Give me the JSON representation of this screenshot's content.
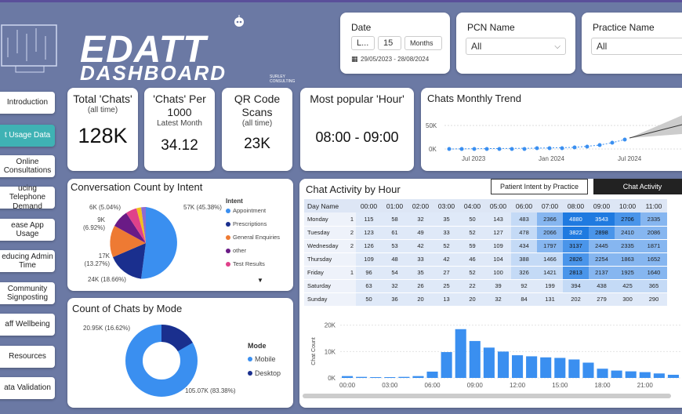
{
  "brand": {
    "line1": "EDATT",
    "line2": "DASHBOARD",
    "consultancy": "SURLEY CONSULTING"
  },
  "nav": [
    {
      "label": "Introduction",
      "active": false
    },
    {
      "label": "t Usage Data",
      "active": true
    },
    {
      "label": "Online Consultations",
      "active": false
    },
    {
      "label": "ucing Telephone Demand",
      "active": false
    },
    {
      "label": "ease App Usage",
      "active": false
    },
    {
      "label": "educing Admin Time",
      "active": false
    },
    {
      "label": "Community Signposting",
      "active": false
    },
    {
      "label": "aff Wellbeing",
      "active": false
    },
    {
      "label": "Resources",
      "active": false
    },
    {
      "label": "ata Validation",
      "active": false
    }
  ],
  "filters": {
    "date": {
      "title": "Date",
      "mode": "L...",
      "count": "15",
      "unit": "Months",
      "range": "29/05/2023 - 28/08/2024"
    },
    "pcn": {
      "title": "PCN Name",
      "value": "All"
    },
    "practice": {
      "title": "Practice Name",
      "value": "All"
    }
  },
  "kpis": {
    "total_chats": {
      "title": "Total 'Chats'",
      "sub": "(all time)",
      "value": "128K"
    },
    "chats_per_1000": {
      "title": "'Chats' Per 1000",
      "sub": "Latest Month",
      "value": "34.12"
    },
    "qr_scans": {
      "title": "QR Code Scans",
      "sub": "(all time)",
      "value": "23K"
    },
    "popular_hour": {
      "title": "Most popular 'Hour'",
      "value": "08:00 - 09:00"
    }
  },
  "trend": {
    "title": "Chats Monthly Trend",
    "y_ticks": [
      "50K",
      "0K"
    ],
    "x_ticks": [
      "Jul 2023",
      "Jan 2024",
      "Jul 2024"
    ]
  },
  "intent": {
    "title": "Conversation Count by Intent",
    "legend_title": "Intent",
    "labels": [
      "57K (45.38%)",
      "24K (18.66%)",
      "17K (13.27%)",
      "9K (6.92%)",
      "6K (5.04%)"
    ],
    "colors": {
      "appointment": "#3a8ff0",
      "prescriptions": "#1a2f8e",
      "enquiries": "#ee7a33",
      "other": "#6a1b86",
      "test": "#e0418a"
    }
  },
  "mode": {
    "title": "Count of Chats by Mode",
    "legend_title": "Mode",
    "labels": [
      "20.95K (16.62%)",
      "105.07K (83.38%)"
    ],
    "colors": {
      "mobile": "#3a8ff0",
      "desktop": "#1a2f8e"
    }
  },
  "activity": {
    "title": "Chat Activity by Hour",
    "tab_inactive": "Patient Intent by Practice",
    "tab_active": "Chat Activity",
    "day_header": "Day Name",
    "hours": [
      "00:00",
      "01:00",
      "02:00",
      "03:00",
      "04:00",
      "05:00",
      "06:00",
      "07:00",
      "08:00",
      "09:00",
      "10:00",
      "11:00"
    ],
    "rows": [
      {
        "day": "Monday",
        "idx": "1",
        "cells": [
          "115",
          "58",
          "32",
          "35",
          "50",
          "143",
          "483",
          "2366",
          "4880",
          "3543",
          "2706",
          "2335"
        ]
      },
      {
        "day": "Tuesday",
        "idx": "2",
        "cells": [
          "123",
          "61",
          "49",
          "33",
          "52",
          "127",
          "478",
          "2066",
          "3822",
          "2898",
          "2410",
          "2086"
        ]
      },
      {
        "day": "Wednesday",
        "idx": "2",
        "cells": [
          "126",
          "53",
          "42",
          "52",
          "59",
          "109",
          "434",
          "1797",
          "3137",
          "2445",
          "2335",
          "1871"
        ]
      },
      {
        "day": "Thursday",
        "idx": "",
        "cells": [
          "109",
          "48",
          "33",
          "42",
          "46",
          "104",
          "388",
          "1466",
          "2826",
          "2254",
          "1863",
          "1652"
        ]
      },
      {
        "day": "Friday",
        "idx": "1",
        "cells": [
          "96",
          "54",
          "35",
          "27",
          "52",
          "100",
          "326",
          "1421",
          "2813",
          "2137",
          "1925",
          "1640"
        ]
      },
      {
        "day": "Saturday",
        "idx": "",
        "cells": [
          "63",
          "32",
          "26",
          "25",
          "22",
          "39",
          "92",
          "199",
          "394",
          "438",
          "425",
          "365"
        ]
      },
      {
        "day": "Sunday",
        "idx": "",
        "cells": [
          "50",
          "36",
          "20",
          "13",
          "20",
          "32",
          "84",
          "131",
          "202",
          "279",
          "300",
          "290"
        ]
      }
    ]
  },
  "chart_data": {
    "type": "bar",
    "title": "",
    "ylabel": "Chat Count",
    "y_ticks": [
      "20K",
      "10K",
      "0K"
    ],
    "x_ticks": [
      "00:00",
      "03:00",
      "06:00",
      "09:00",
      "12:00",
      "15:00",
      "18:00",
      "21:00"
    ],
    "categories": [
      "00",
      "01",
      "02",
      "03",
      "04",
      "05",
      "06",
      "07",
      "08",
      "09",
      "10",
      "11",
      "12",
      "13",
      "14",
      "15",
      "16",
      "17",
      "18",
      "19",
      "20",
      "21",
      "22",
      "23"
    ],
    "values": [
      700,
      400,
      300,
      300,
      400,
      700,
      2400,
      9800,
      18500,
      14000,
      11500,
      10000,
      8600,
      8200,
      7800,
      7600,
      7000,
      5800,
      3500,
      2800,
      2500,
      2200,
      1700,
      1200
    ],
    "ylim": [
      0,
      22000
    ]
  }
}
